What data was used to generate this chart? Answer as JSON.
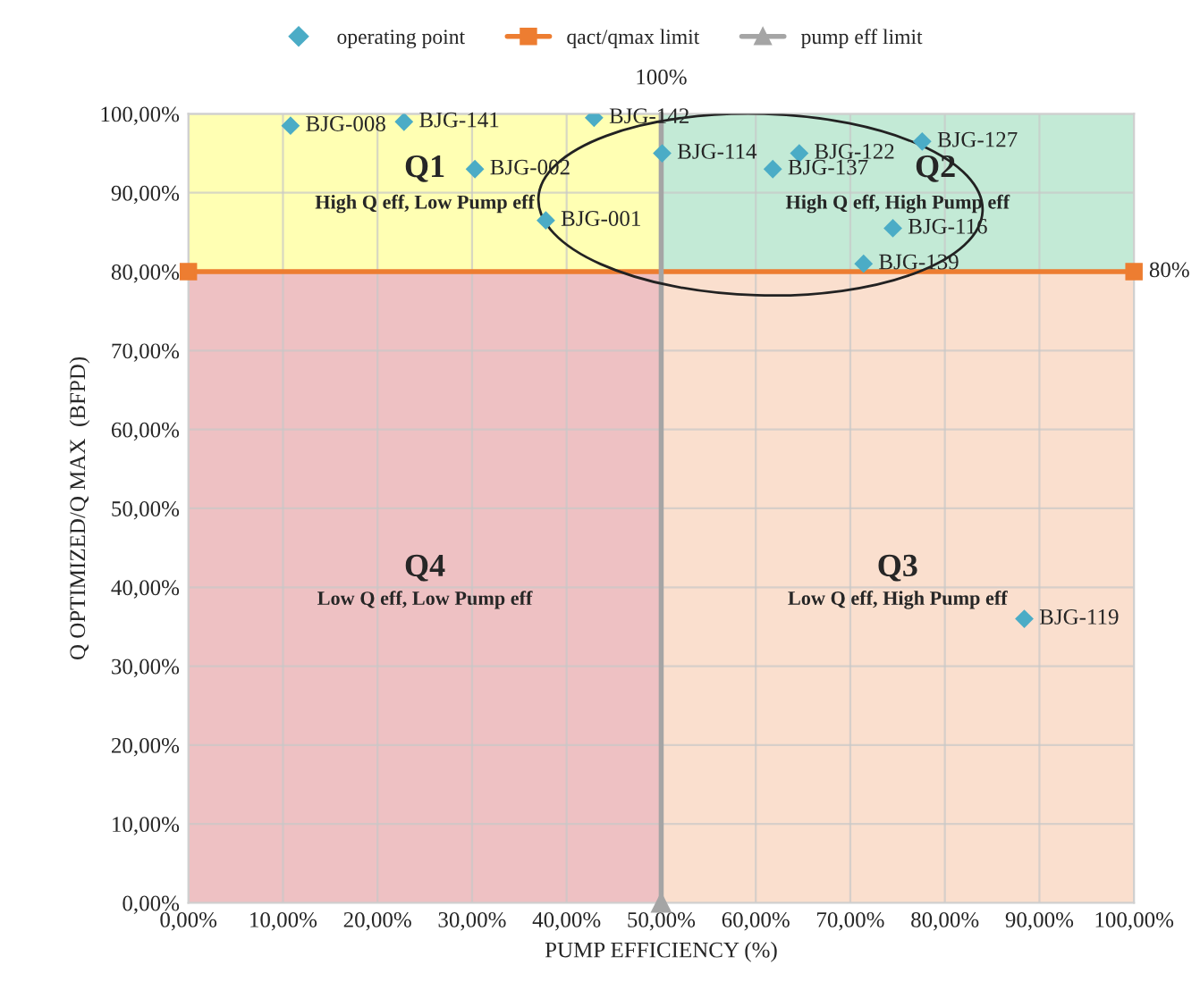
{
  "chart_data": {
    "type": "scatter",
    "xlabel": "PUMP EFFICIENCY (%)",
    "ylabel": "Q OPTIMIZED/Q MAX  (BFPD)",
    "xlim": [
      0,
      100
    ],
    "ylim": [
      0,
      100
    ],
    "xticks": [
      {
        "value": 0,
        "label": "0,00%"
      },
      {
        "value": 10,
        "label": "10,00%"
      },
      {
        "value": 20,
        "label": "20,00%"
      },
      {
        "value": 30,
        "label": "30,00%"
      },
      {
        "value": 40,
        "label": "40,00%"
      },
      {
        "value": 50,
        "label": "50,00%"
      },
      {
        "value": 60,
        "label": "60,00%"
      },
      {
        "value": 70,
        "label": "70,00%"
      },
      {
        "value": 80,
        "label": "80,00%"
      },
      {
        "value": 90,
        "label": "90,00%"
      },
      {
        "value": 100,
        "label": "100,00%"
      }
    ],
    "yticks": [
      {
        "value": 0,
        "label": "0,00%"
      },
      {
        "value": 10,
        "label": "10,00%"
      },
      {
        "value": 20,
        "label": "20,00%"
      },
      {
        "value": 30,
        "label": "30,00%"
      },
      {
        "value": 40,
        "label": "40,00%"
      },
      {
        "value": 50,
        "label": "50,00%"
      },
      {
        "value": 60,
        "label": "60,00%"
      },
      {
        "value": 70,
        "label": "70,00%"
      },
      {
        "value": 80,
        "label": "80,00%"
      },
      {
        "value": 90,
        "label": "90,00%"
      },
      {
        "value": 100,
        "label": "100,00%"
      }
    ],
    "grid": true,
    "legend": "top",
    "series": [
      {
        "name": "operating point",
        "marker": "diamond",
        "color": "#4bacc6",
        "x": [
          10.8,
          22.8,
          42.9,
          30.3,
          37.8,
          50.1,
          64.6,
          61.8,
          77.6,
          74.5,
          71.4,
          88.4
        ],
        "values": [
          98.5,
          99,
          99.5,
          93,
          86.5,
          95,
          95,
          93,
          96.5,
          85.5,
          81,
          36
        ]
      },
      {
        "name": "qact/qmax limit",
        "type": "line",
        "marker": "square",
        "color": "#ed7d31",
        "x": [
          0,
          100
        ],
        "values": [
          80,
          80
        ]
      },
      {
        "name": "pump eff limit",
        "type": "line",
        "marker": "triangle",
        "color": "#a5a5a5",
        "x": [
          50,
          50
        ],
        "values": [
          0,
          100
        ]
      }
    ],
    "annotations": [
      {
        "text": "BJG-008",
        "x": 10.8,
        "y": 98.5
      },
      {
        "text": "BJG-141",
        "x": 22.8,
        "y": 99
      },
      {
        "text": "BJG-142",
        "x": 42.9,
        "y": 99.5
      },
      {
        "text": "BJG-002",
        "x": 30.3,
        "y": 93
      },
      {
        "text": "BJG-001",
        "x": 37.8,
        "y": 86.5
      },
      {
        "text": "BJG-114",
        "x": 50.1,
        "y": 95
      },
      {
        "text": "BJG-122",
        "x": 64.6,
        "y": 95
      },
      {
        "text": "BJG-137",
        "x": 61.8,
        "y": 93
      },
      {
        "text": "BJG-127",
        "x": 77.6,
        "y": 96.5
      },
      {
        "text": "BJG-116",
        "x": 74.5,
        "y": 85.5
      },
      {
        "text": "BJG-139",
        "x": 71.4,
        "y": 81
      },
      {
        "text": "BJG-119",
        "x": 88.4,
        "y": 36
      },
      "Q1",
      "High Q eff, Low Pump eff",
      "Q2",
      "High Q eff, High Pump eff",
      "Q3",
      "Low Q eff, High Pump eff",
      "Q4",
      "Low Q eff, Low Pump eff",
      {
        "text": "100%",
        "x": 50,
        "y": 100
      },
      {
        "text": "80%",
        "x": 100,
        "y": 80
      }
    ]
  }
}
